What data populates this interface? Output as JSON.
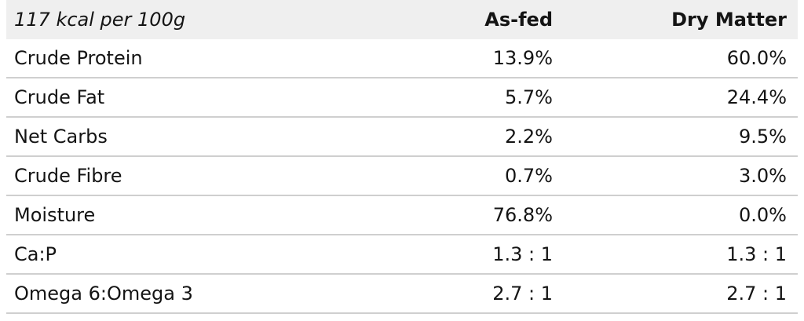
{
  "table": {
    "header": {
      "energy": "117 kcal per 100g",
      "as_fed": "As-fed",
      "dry_matter": "Dry Matter"
    },
    "rows": [
      {
        "name": "Crude Protein",
        "as_fed": "13.9%",
        "dry_matter": "60.0%"
      },
      {
        "name": "Crude Fat",
        "as_fed": "5.7%",
        "dry_matter": "24.4%"
      },
      {
        "name": "Net Carbs",
        "as_fed": "2.2%",
        "dry_matter": "9.5%"
      },
      {
        "name": "Crude Fibre",
        "as_fed": "0.7%",
        "dry_matter": "3.0%"
      },
      {
        "name": "Moisture",
        "as_fed": "76.8%",
        "dry_matter": "0.0%"
      },
      {
        "name": "Ca:P",
        "as_fed": "1.3 : 1",
        "dry_matter": "1.3 : 1"
      },
      {
        "name": "Omega 6:Omega 3",
        "as_fed": "2.7 : 1",
        "dry_matter": "2.7 : 1"
      }
    ]
  }
}
